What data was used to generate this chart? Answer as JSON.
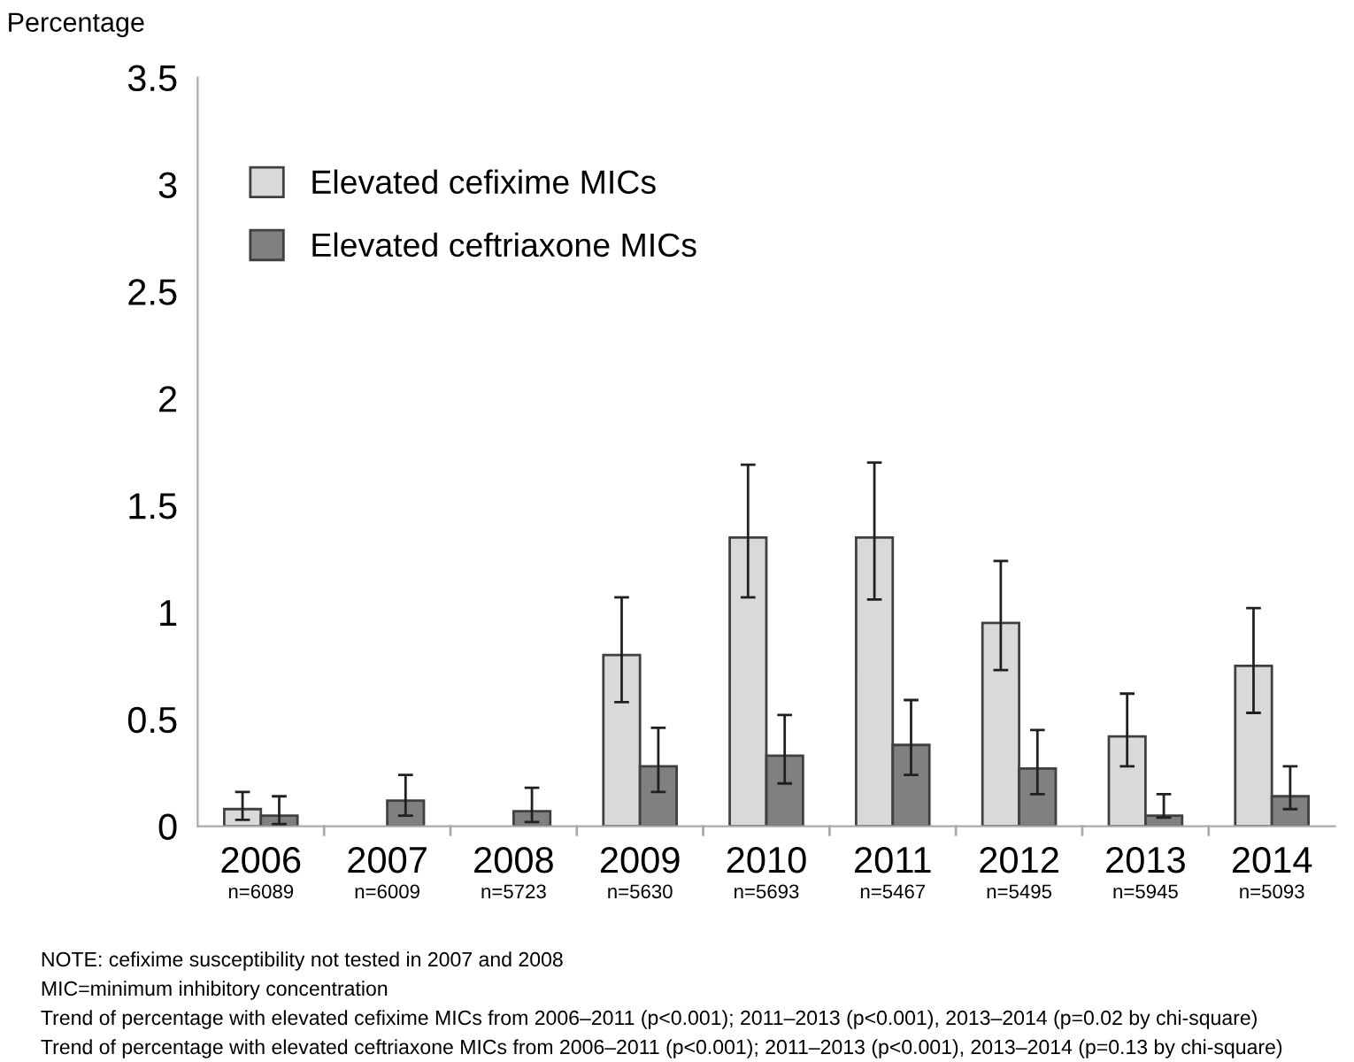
{
  "chart_data": {
    "type": "bar",
    "ylabel": "Percentage",
    "categories": [
      "2006",
      "2007",
      "2008",
      "2009",
      "2010",
      "2011",
      "2012",
      "2013",
      "2014"
    ],
    "series": [
      {
        "name": "Elevated cefixime MICs",
        "color": "#d9d9d9",
        "values": [
          0.08,
          null,
          null,
          0.8,
          1.35,
          1.35,
          0.95,
          0.42,
          0.75
        ],
        "errors": [
          [
            0.03,
            0.16
          ],
          null,
          null,
          [
            0.58,
            1.07
          ],
          [
            1.07,
            1.69
          ],
          [
            1.06,
            1.7
          ],
          [
            0.73,
            1.24
          ],
          [
            0.28,
            0.62
          ],
          [
            0.53,
            1.02
          ]
        ]
      },
      {
        "name": "Elevated ceftriaxone MICs",
        "color": "#808080",
        "values": [
          0.05,
          0.12,
          0.07,
          0.28,
          0.33,
          0.38,
          0.27,
          0.05,
          0.14
        ],
        "errors": [
          [
            0.01,
            0.14
          ],
          [
            0.05,
            0.24
          ],
          [
            0.02,
            0.18
          ],
          [
            0.16,
            0.46
          ],
          [
            0.2,
            0.52
          ],
          [
            0.24,
            0.59
          ],
          [
            0.15,
            0.45
          ],
          [
            0.04,
            0.15
          ],
          [
            0.08,
            0.28
          ]
        ]
      }
    ],
    "ylim": [
      0,
      3.5
    ],
    "yticks": [
      0,
      0.5,
      1,
      1.5,
      2,
      2.5,
      3,
      3.5
    ],
    "grid": false,
    "legend": "top left",
    "annotations": [
      "n=6089",
      "n=6009",
      "n=5723",
      "n=5630",
      "n=5693",
      "n=5467",
      "n=5495",
      "n=5945",
      "n=5093",
      "NOTE: cefixime susceptibility not tested in 2007 and 2008",
      "MIC=minimum inhibitory concentration",
      "Trend of percentage with elevated cefixime MICs from 2006–2011 (p<0.001); 2011–2013 (p<0.001), 2013–2014 (p=0.02 by chi-square)",
      "Trend of percentage with elevated ceftriaxone MICs from 2006–2011 (p<0.001); 2011–2013 (p<0.001), 2013–2014 (p=0.13 by chi-square)"
    ]
  }
}
